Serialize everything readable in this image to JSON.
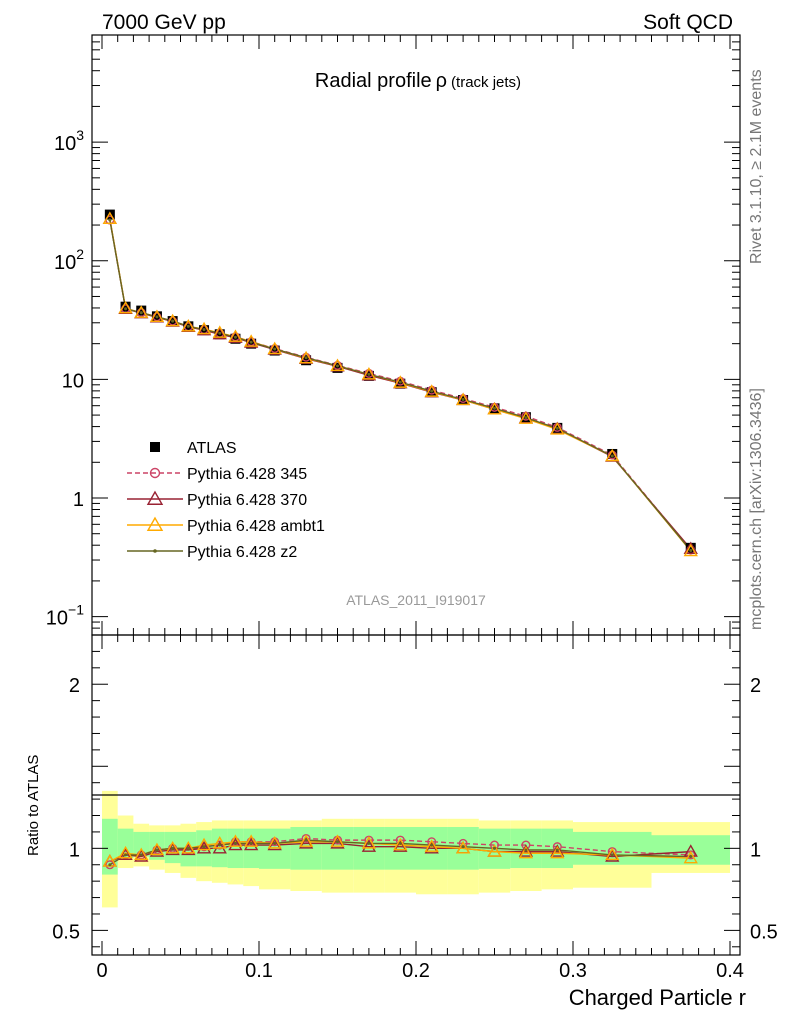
{
  "header": {
    "left": "7000 GeV pp",
    "right": "Soft QCD"
  },
  "side_labels": {
    "rivet": "Rivet 3.1.10, ≥ 2.1M events",
    "mcplots": "mcplots.cern.ch [arXiv:1306.3436]"
  },
  "chart_data": {
    "type": "line",
    "title": "Radial profile",
    "title_symbol": "ρ",
    "title_suffix": "(track jets)",
    "analysis_tag": "ATLAS_2011_I919017",
    "xlabel": "Charged Particle r",
    "ylabel_ratio": "Ratio to ATLAS",
    "xlim": [
      0,
      0.4
    ],
    "ylim_main": [
      0.07,
      8000
    ],
    "yscale_main": "log",
    "ylim_ratio": [
      0.35,
      2.3
    ],
    "x_ticks": [
      "0",
      "0.1",
      "0.2",
      "0.3",
      "0.4"
    ],
    "y_ticks_main": [
      {
        "base": "10",
        "exp": "3"
      },
      {
        "base": "10",
        "exp": "2"
      },
      {
        "base": "10",
        "exp": ""
      },
      {
        "base": "1",
        "exp": ""
      },
      {
        "base": "10",
        "exp": "−1"
      }
    ],
    "y_ticks_ratio": [
      "2",
      "1",
      "0.5"
    ],
    "legend_position": "middle-left",
    "x": [
      0.005,
      0.015,
      0.025,
      0.035,
      0.045,
      0.055,
      0.065,
      0.075,
      0.085,
      0.095,
      0.11,
      0.13,
      0.15,
      0.17,
      0.19,
      0.21,
      0.23,
      0.25,
      0.27,
      0.29,
      0.325,
      0.375
    ],
    "data": {
      "name": "ATLAS",
      "values": [
        245,
        41,
        38,
        34,
        31,
        28,
        26,
        24,
        22,
        20,
        17.5,
        14.5,
        12.5,
        10.7,
        9.2,
        7.8,
        6.7,
        5.7,
        4.8,
        3.9,
        2.35,
        0.38
      ]
    },
    "band_edges": [
      0,
      0.01,
      0.02,
      0.03,
      0.04,
      0.05,
      0.06,
      0.07,
      0.08,
      0.09,
      0.1,
      0.12,
      0.14,
      0.16,
      0.18,
      0.2,
      0.22,
      0.24,
      0.26,
      0.28,
      0.3,
      0.35,
      0.4
    ],
    "band_inner": {
      "lo": [
        0.84,
        0.94,
        0.95,
        0.93,
        0.91,
        0.89,
        0.89,
        0.885,
        0.88,
        0.88,
        0.875,
        0.87,
        0.87,
        0.87,
        0.87,
        0.87,
        0.87,
        0.875,
        0.88,
        0.88,
        0.9,
        0.9
      ],
      "hi": [
        1.18,
        1.12,
        1.1,
        1.1,
        1.1,
        1.1,
        1.11,
        1.12,
        1.12,
        1.12,
        1.12,
        1.13,
        1.13,
        1.13,
        1.13,
        1.13,
        1.13,
        1.12,
        1.12,
        1.12,
        1.1,
        1.08
      ]
    },
    "band_outer": {
      "lo": [
        0.64,
        0.88,
        0.89,
        0.87,
        0.85,
        0.82,
        0.8,
        0.79,
        0.78,
        0.77,
        0.75,
        0.74,
        0.73,
        0.73,
        0.73,
        0.72,
        0.72,
        0.73,
        0.74,
        0.75,
        0.76,
        0.85
      ],
      "hi": [
        1.35,
        1.2,
        1.15,
        1.14,
        1.14,
        1.15,
        1.16,
        1.17,
        1.17,
        1.17,
        1.17,
        1.17,
        1.18,
        1.18,
        1.18,
        1.18,
        1.18,
        1.17,
        1.17,
        1.17,
        1.16,
        1.16
      ]
    },
    "series": [
      {
        "name": "Pythia 6.428 345",
        "color": "#cc4466",
        "marker": "open-circle",
        "dashed": true,
        "ratio": [
          0.9,
          0.96,
          0.96,
          0.99,
          1.0,
          0.99,
          1.01,
          1.02,
          1.04,
          1.04,
          1.04,
          1.06,
          1.05,
          1.05,
          1.05,
          1.04,
          1.03,
          1.02,
          1.02,
          1.01,
          0.98,
          0.96
        ]
      },
      {
        "name": "Pythia 6.428 370",
        "color": "#992233",
        "marker": "open-triangle",
        "dashed": false,
        "ratio": [
          0.92,
          0.96,
          0.95,
          0.98,
          0.99,
          0.99,
          1.0,
          1.0,
          1.02,
          1.02,
          1.02,
          1.03,
          1.03,
          1.01,
          1.01,
          1.0,
          1.0,
          0.98,
          0.98,
          0.98,
          0.95,
          0.98
        ]
      },
      {
        "name": "Pythia 6.428 ambt1",
        "color": "#ffaa00",
        "marker": "open-triangle",
        "dashed": false,
        "ratio": [
          0.92,
          0.97,
          0.96,
          0.99,
          1.0,
          1.0,
          1.02,
          1.03,
          1.04,
          1.04,
          1.03,
          1.04,
          1.04,
          1.03,
          1.02,
          1.01,
          1.0,
          0.98,
          0.97,
          0.97,
          0.96,
          0.94
        ]
      },
      {
        "name": "Pythia 6.428 z2",
        "color": "#666622",
        "marker": "dot",
        "dashed": false,
        "ratio": [
          0.9,
          0.96,
          0.96,
          0.99,
          1.0,
          1.0,
          1.01,
          1.02,
          1.03,
          1.03,
          1.03,
          1.05,
          1.04,
          1.03,
          1.03,
          1.02,
          1.01,
          1.0,
          0.99,
          0.99,
          0.96,
          0.95
        ]
      }
    ]
  }
}
